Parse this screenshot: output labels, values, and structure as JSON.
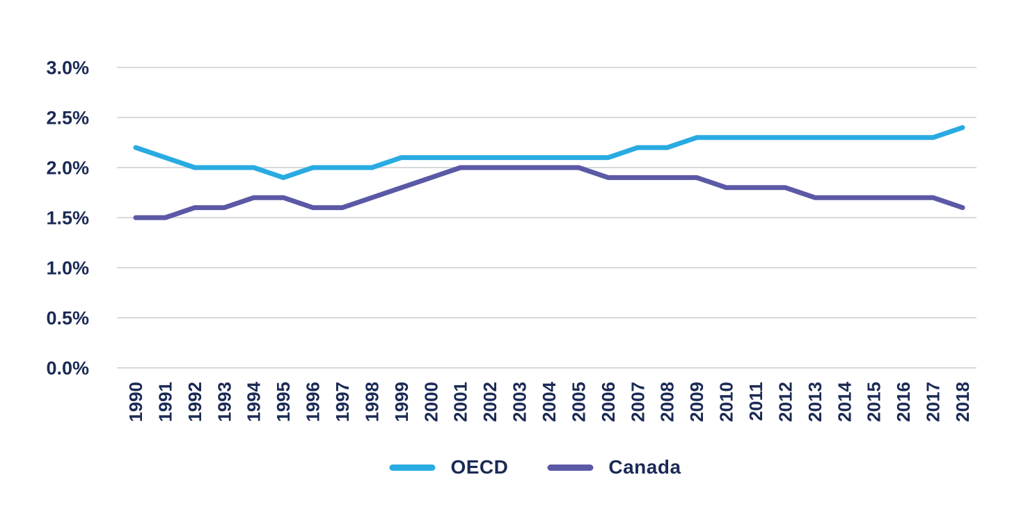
{
  "chart_data": {
    "type": "line",
    "title": "",
    "xlabel": "",
    "ylabel": "",
    "categories": [
      "1990",
      "1991",
      "1992",
      "1993",
      "1994",
      "1995",
      "1996",
      "1997",
      "1998",
      "1999",
      "2000",
      "2001",
      "2002",
      "2003",
      "2004",
      "2005",
      "2006",
      "2007",
      "2008",
      "2009",
      "2010",
      "2011",
      "2012",
      "2013",
      "2014",
      "2015",
      "2016",
      "2017",
      "2018"
    ],
    "series": [
      {
        "name": "OECD",
        "color": "#29abe2",
        "values": [
          2.2,
          2.1,
          2.0,
          2.0,
          2.0,
          1.9,
          2.0,
          2.0,
          2.0,
          2.1,
          2.1,
          2.1,
          2.1,
          2.1,
          2.1,
          2.1,
          2.1,
          2.2,
          2.2,
          2.3,
          2.3,
          2.3,
          2.3,
          2.3,
          2.3,
          2.3,
          2.3,
          2.3,
          2.4
        ]
      },
      {
        "name": "Canada",
        "color": "#5b59a5",
        "values": [
          1.5,
          1.5,
          1.6,
          1.6,
          1.7,
          1.7,
          1.6,
          1.6,
          1.7,
          1.8,
          1.9,
          2.0,
          2.0,
          2.0,
          2.0,
          2.0,
          1.9,
          1.9,
          1.9,
          1.9,
          1.8,
          1.8,
          1.8,
          1.7,
          1.7,
          1.7,
          1.7,
          1.7,
          1.6
        ]
      }
    ],
    "y_ticks": [
      "0.0%",
      "0.5%",
      "1.0%",
      "1.5%",
      "2.0%",
      "2.5%",
      "3.0%"
    ],
    "ylim": [
      0,
      3
    ],
    "unit": "%",
    "grid": "horizontal",
    "gridline_color": "#d9d9d9",
    "tick_label_color": "#1b2a55",
    "legend_position": "bottom"
  },
  "legend": {
    "items": [
      {
        "label": "OECD"
      },
      {
        "label": "Canada"
      }
    ]
  }
}
